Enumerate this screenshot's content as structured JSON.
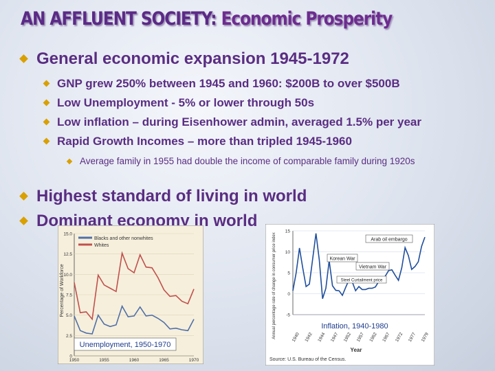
{
  "slide": {
    "title_part1": "AN AFFLUENT SOCIETY:",
    "title_part2": "Economic Prosperity",
    "bullets": [
      {
        "text": "General economic expansion 1945-1972"
      },
      {
        "text": "GNP grew 250% between 1945 and 1960:  $200B to over $500B"
      },
      {
        "text": "Low Unemployment - 5% or lower through 50s"
      },
      {
        "text": "Low inflation – during Eisenhower admin, averaged 1.5% per year"
      },
      {
        "text": "Rapid Growth Incomes – more than tripled 1945-1960"
      },
      {
        "text": "Average family in 1955 had double the income of comparable family during 1920s"
      },
      {
        "text": "Highest standard of living in world"
      },
      {
        "text": "Dominant economy in world"
      }
    ],
    "colors": {
      "title": "#5b2a86",
      "text": "#5a2d82",
      "bullet_marker": "#d9a000"
    }
  },
  "chart_data": [
    {
      "type": "line",
      "caption": "Unemployment, 1950-1970",
      "ylabel": "Percentage of Workforce",
      "x_ticks": [
        "1950",
        "1955",
        "1960",
        "1965",
        "1970"
      ],
      "y_ticks": [
        "0",
        "2.5",
        "5.0",
        "7.5",
        "10.0",
        "12.5",
        "15.0"
      ],
      "xlim": [
        1950,
        1970
      ],
      "ylim": [
        0,
        15
      ],
      "series": [
        {
          "name": "Blacks and other nonwhites",
          "color": "#c0504d",
          "x": [
            1950,
            1951,
            1952,
            1953,
            1954,
            1955,
            1956,
            1957,
            1958,
            1959,
            1960,
            1961,
            1962,
            1963,
            1964,
            1965,
            1966,
            1967,
            1968,
            1969,
            1970
          ],
          "values": [
            9.0,
            5.3,
            5.4,
            4.5,
            9.9,
            8.7,
            8.3,
            7.9,
            12.6,
            10.7,
            10.2,
            12.4,
            10.9,
            10.8,
            9.6,
            8.1,
            7.3,
            7.4,
            6.7,
            6.4,
            8.2
          ]
        },
        {
          "name": "Whites",
          "color": "#4f6fa8",
          "x": [
            1950,
            1951,
            1952,
            1953,
            1954,
            1955,
            1956,
            1957,
            1958,
            1959,
            1960,
            1961,
            1962,
            1963,
            1964,
            1965,
            1966,
            1967,
            1968,
            1969,
            1970
          ],
          "values": [
            4.9,
            3.1,
            2.8,
            2.7,
            5.0,
            3.9,
            3.6,
            3.8,
            6.1,
            4.8,
            4.9,
            6.0,
            4.9,
            5.0,
            4.6,
            4.1,
            3.3,
            3.4,
            3.2,
            3.1,
            4.5
          ]
        }
      ]
    },
    {
      "type": "line",
      "caption": "Inflation, 1940-1980",
      "ylabel": "Annual percentage rate of change in consumer price index",
      "xlabel": "Year",
      "source": "Source: U.S. Bureau of the Census.",
      "x_ticks": [
        "1940",
        "1942",
        "1944",
        "1947",
        "1952",
        "1957",
        "1962",
        "1967",
        "1972",
        "1977",
        "1979"
      ],
      "y_ticks": [
        "-5",
        "0",
        "5",
        "10",
        "15"
      ],
      "ylim": [
        -5,
        15
      ],
      "annotations": [
        "Arab oil embargo",
        "Korean War",
        "Vietnam War",
        "Steel Curtailment price"
      ],
      "series": [
        {
          "name": "",
          "color": "#1f4e9c",
          "values": [
            0.7,
            5.0,
            10.9,
            6.1,
            1.7,
            2.3,
            8.3,
            14.4,
            8.1,
            -1.2,
            1.3,
            7.9,
            1.9,
            0.8,
            0.7,
            -0.4,
            1.5,
            3.3,
            2.8,
            0.7,
            1.7,
            1.0,
            1.0,
            1.3,
            1.3,
            1.6,
            2.9,
            3.1,
            4.2,
            5.5,
            5.7,
            4.4,
            3.2,
            6.2,
            11.0,
            9.1,
            5.8,
            6.5,
            7.6,
            11.3,
            13.5
          ]
        }
      ]
    }
  ]
}
